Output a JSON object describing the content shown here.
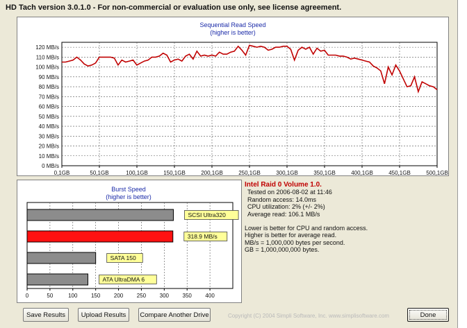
{
  "window": {
    "title": "HD Tach version 3.0.1.0  - For non-commercial or evaluation use only, see license agreement."
  },
  "colors": {
    "read_line": "#c00000",
    "burst_highlight": "#ff1111",
    "burst_gray": "#8c8c8c",
    "label_bg": "#ffff99",
    "title_blue": "#1a2aa8"
  },
  "seq_chart": {
    "title": "Sequential Read Speed",
    "subtitle": "(higher is better)",
    "y_ticks": [
      "120 MB/s",
      "110 MB/s",
      "100 MB/s",
      "90 MB/s",
      "80 MB/s",
      "70 MB/s",
      "60 MB/s",
      "50 MB/s",
      "40 MB/s",
      "30 MB/s",
      "20 MB/s",
      "10 MB/s",
      "0 MB/s"
    ],
    "x_ticks": [
      "0,1GB",
      "50,1GB",
      "100,1GB",
      "150,1GB",
      "200,1GB",
      "250,1GB",
      "300,1GB",
      "350,1GB",
      "400,1GB",
      "450,1GB",
      "500,1GB"
    ]
  },
  "burst_chart": {
    "title": "Burst Speed",
    "subtitle": "(higher is better)",
    "x_ticks": [
      "0",
      "50",
      "100",
      "150",
      "200",
      "250",
      "300",
      "350",
      "400"
    ]
  },
  "info": {
    "header": "Intel Raid 0 Volume 1.0.",
    "lines": [
      "Tested on 2006-08-02 at 11:46",
      "Random access: 14.0ms",
      "CPU utilization: 2% (+/- 2%)",
      "Average read: 106.1 MB/s"
    ],
    "notes": [
      "Lower is better for CPU and random access.",
      "Higher is better for average read.",
      "MB/s = 1,000,000 bytes per second.",
      "GB = 1,000,000,000 bytes."
    ]
  },
  "buttons": {
    "save": "Save Results",
    "upload": "Upload Results",
    "compare": "Compare Another Drive",
    "done": "Done"
  },
  "copyright": "Copyright (C) 2004 Simpli Software, Inc. www.simplisoftware.com",
  "chart_data": [
    {
      "type": "line",
      "title": "Sequential Read Speed",
      "subtitle": "(higher is better)",
      "xlabel": "",
      "ylabel": "",
      "x_unit": "GB",
      "y_unit": "MB/s",
      "xlim": [
        0.1,
        500.1
      ],
      "ylim": [
        0,
        125
      ],
      "grid": true,
      "series": [
        {
          "x": [
            0.1,
            5,
            10,
            15,
            20,
            25,
            30,
            35,
            40,
            45,
            50,
            55,
            60,
            65,
            70,
            75,
            80,
            85,
            90,
            95,
            100,
            105,
            110,
            115,
            120,
            125,
            130,
            135,
            140,
            145,
            150,
            155,
            160,
            165,
            170,
            175,
            180,
            185,
            190,
            195,
            200,
            205,
            210,
            215,
            220,
            225,
            230,
            235,
            240,
            245,
            250,
            255,
            260,
            265,
            270,
            275,
            280,
            285,
            290,
            295,
            300,
            305,
            310,
            315,
            320,
            325,
            330,
            335,
            340,
            345,
            350,
            355,
            360,
            365,
            370,
            375,
            380,
            385,
            390,
            395,
            400,
            405,
            410,
            415,
            420,
            425,
            430,
            435,
            440,
            445,
            450,
            455,
            460,
            465,
            470,
            475,
            480,
            485,
            490,
            495,
            500.1
          ],
          "y": [
            105,
            105,
            106,
            107,
            110,
            107,
            103,
            101,
            102,
            104,
            110,
            110,
            110,
            110,
            109,
            102,
            107,
            105,
            106,
            107,
            102,
            104,
            106,
            107,
            110,
            110,
            111,
            114,
            112,
            105,
            107,
            108,
            106,
            111,
            113,
            108,
            116,
            111,
            112,
            111,
            112,
            111,
            115,
            113,
            113,
            115,
            116,
            121,
            117,
            112,
            122,
            121,
            120,
            121,
            120,
            117,
            118,
            120,
            120,
            121,
            121,
            118,
            107,
            117,
            120,
            118,
            120,
            113,
            119,
            116,
            117,
            112,
            112,
            112,
            111,
            111,
            110,
            108,
            109,
            108,
            107,
            106,
            105,
            101,
            99,
            96,
            83,
            100,
            92,
            102,
            96,
            88,
            80,
            81,
            90,
            75,
            85,
            83,
            81,
            80,
            77
          ]
        }
      ]
    },
    {
      "type": "bar",
      "title": "Burst Speed",
      "subtitle": "(higher is better)",
      "orientation": "horizontal",
      "xlim": [
        0,
        450
      ],
      "grid": true,
      "categories": [
        "SCSI Ultra320",
        "318.9 MB/s",
        "SATA 150",
        "ATA UltraDMA 6"
      ],
      "values": [
        320,
        318.9,
        150,
        133
      ],
      "highlight": "318.9 MB/s"
    }
  ]
}
